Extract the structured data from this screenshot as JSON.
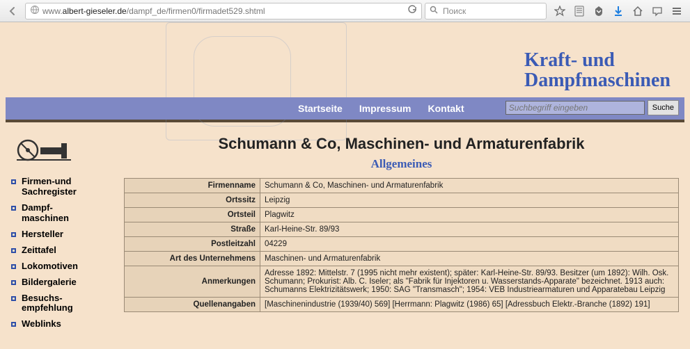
{
  "browser": {
    "url_prefix": "www.",
    "url_host": "albert-gieseler.de",
    "url_path": "/dampf_de/firmen0/firmadet529.shtml",
    "search_placeholder": "Поиск"
  },
  "site": {
    "title_line1": "Kraft- und",
    "title_line2": "Dampfmaschinen"
  },
  "topnav": {
    "items": [
      {
        "label": "Startseite"
      },
      {
        "label": "Impressum"
      },
      {
        "label": "Kontakt"
      }
    ],
    "search_placeholder": "Suchbegriff eingeben",
    "search_button": "Suche"
  },
  "sidebar": {
    "items": [
      {
        "label": "Firmen-und Sachregister"
      },
      {
        "label": "Dampf-\nmaschinen"
      },
      {
        "label": "Hersteller"
      },
      {
        "label": "Zeittafel"
      },
      {
        "label": "Lokomotiven"
      },
      {
        "label": "Bildergalerie"
      },
      {
        "label": "Besuchs-\nempfehlung"
      },
      {
        "label": "Weblinks"
      }
    ]
  },
  "main": {
    "title": "Schumann & Co, Maschinen- und Armaturenfabrik",
    "subtitle": "Allgemeines",
    "rows": [
      {
        "k": "Firmenname",
        "v": "Schumann & Co, Maschinen- und Armaturenfabrik"
      },
      {
        "k": "Ortssitz",
        "v": "Leipzig"
      },
      {
        "k": "Ortsteil",
        "v": "Plagwitz"
      },
      {
        "k": "Straße",
        "v": "Karl-Heine-Str. 89/93"
      },
      {
        "k": "Postleitzahl",
        "v": "04229"
      },
      {
        "k": "Art des Unternehmens",
        "v": "Maschinen- und Armaturenfabrik"
      },
      {
        "k": "Anmerkungen",
        "v": "Adresse 1892: Mittelstr. 7 (1995 nicht mehr existent); später: Karl-Heine-Str. 89/93. Besitzer (um 1892): Wilh. Osk. Schumann; Prokurist: Alb. C. Iseler; als \"Fabrik für Injektoren u. Wasserstands-Apparate\" bezeichnet. 1913 auch: Schumanns Elektrizitätswerk; 1950: SAG \"Transmasch\"; 1954: VEB Industriearmaturen und Apparatebau Leipzig"
      },
      {
        "k": "Quellenangaben",
        "v": "[Maschinenindustrie (1939/40) 569] [Herrmann: Plagwitz (1986) 65] [Adressbuch Elektr.-Branche (1892) 191]"
      }
    ]
  }
}
